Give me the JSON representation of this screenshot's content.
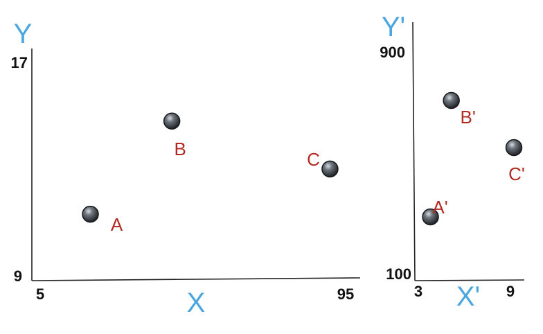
{
  "chart_data": [
    {
      "type": "scatter",
      "xlabel": "X",
      "ylabel": "Y",
      "xlim": [
        5,
        95
      ],
      "ylim": [
        9,
        17
      ],
      "x_ticks": [
        "5",
        "95"
      ],
      "y_ticks": [
        "9",
        "17"
      ],
      "points": [
        {
          "label": "A",
          "x": 19.8,
          "y": 11.5
        },
        {
          "label": "B",
          "x": 43.8,
          "y": 15.0
        },
        {
          "label": "C",
          "x": 90.4,
          "y": 13.2
        }
      ]
    },
    {
      "type": "scatter",
      "xlabel": "X'",
      "ylabel": "Y'",
      "xlim": [
        3,
        9
      ],
      "ylim": [
        100,
        900
      ],
      "x_ticks": [
        "3",
        "9"
      ],
      "y_ticks": [
        "100",
        "900"
      ],
      "points": [
        {
          "label": "A'",
          "x": 3.8,
          "y": 300
        },
        {
          "label": "B'",
          "x": 5.1,
          "y": 720
        },
        {
          "label": "C'",
          "x": 9.0,
          "y": 550
        }
      ]
    }
  ],
  "colors": {
    "axis_title": "#4aa6df",
    "point_label": "#b22a22",
    "tick": "#111111",
    "axis_line": "#222222"
  }
}
